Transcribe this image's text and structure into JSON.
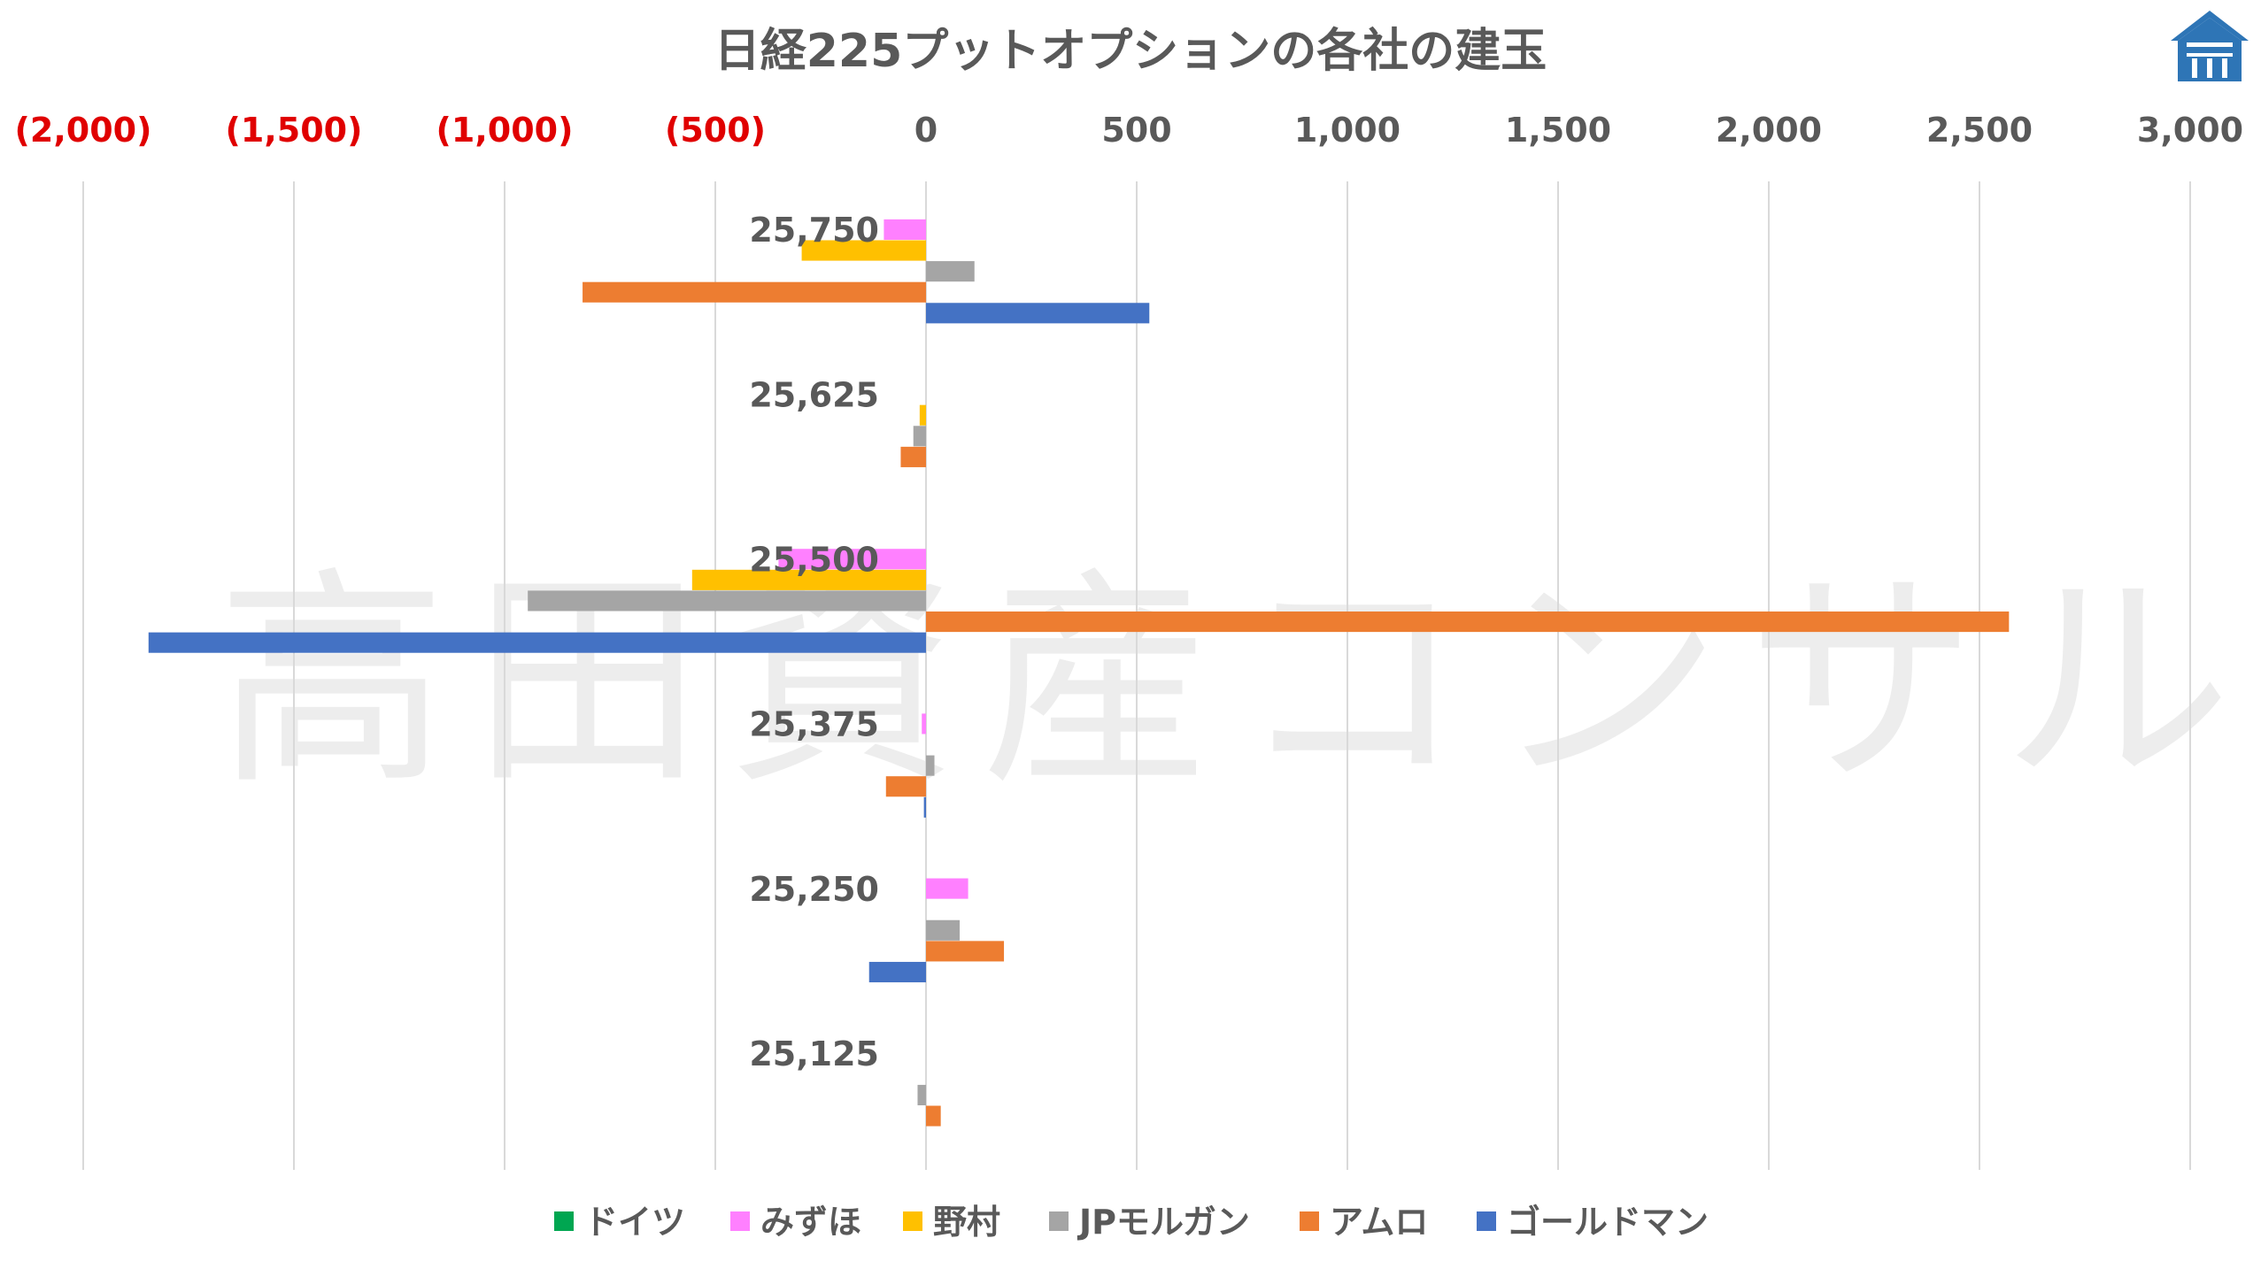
{
  "chart_data": {
    "type": "bar",
    "orientation": "horizontal",
    "title": "日経225プットオプションの各社の建玉",
    "watermark": "高田資産コンサル",
    "xlim": [
      -2000,
      3000
    ],
    "x_ticks": [
      -2000,
      -1500,
      -1000,
      -500,
      0,
      500,
      1000,
      1500,
      2000,
      2500,
      3000
    ],
    "x_tick_labels": [
      "(2,000)",
      "(1,500)",
      "(1,000)",
      "(500)",
      "0",
      "500",
      "1,000",
      "1,500",
      "2,000",
      "2,500",
      "3,000"
    ],
    "negative_tick_color": "#e00000",
    "grid": true,
    "legend_position": "bottom",
    "categories": [
      "25,750",
      "25,625",
      "25,500",
      "25,375",
      "25,250",
      "25,125"
    ],
    "series": [
      {
        "name": "ドイツ",
        "color": "#00a651",
        "values": [
          0,
          0,
          0,
          0,
          0,
          0
        ]
      },
      {
        "name": "みずほ",
        "color": "#ff80ff",
        "values": [
          -100,
          0,
          -350,
          -10,
          100,
          0
        ]
      },
      {
        "name": "野村",
        "color": "#ffc000",
        "values": [
          -295,
          -15,
          -555,
          0,
          0,
          0
        ]
      },
      {
        "name": "JPモルガン",
        "color": "#a5a5a5",
        "values": [
          115,
          -30,
          -945,
          20,
          80,
          -20
        ]
      },
      {
        "name": "アムロ",
        "color": "#ed7d31",
        "values": [
          -815,
          -60,
          2570,
          -95,
          185,
          35
        ]
      },
      {
        "name": "ゴールドマン",
        "color": "#4472c4",
        "values": [
          530,
          0,
          -1845,
          -5,
          -135,
          0
        ]
      }
    ]
  },
  "logo": {
    "icon": "building-logo-icon",
    "color": "#2e75b6"
  }
}
